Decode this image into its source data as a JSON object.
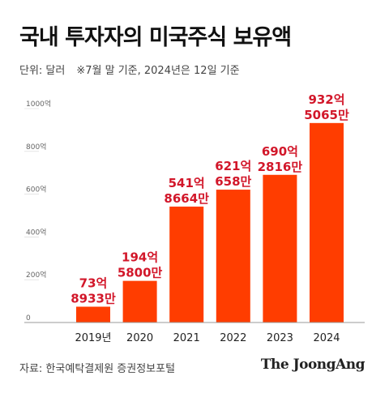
{
  "title": "국내 투자자의 미국주식 보유액",
  "unit_label": "단위: 달러",
  "note": "※7월 말 기준, 2024년은 12일 기준",
  "source": "자료: 한국예탁결제원 증권정보포털",
  "brand": "The JoongAng",
  "colors": {
    "bar": "#ff3d00",
    "label": "#d2172a",
    "axis": "#9a9a9a",
    "tick": "#666666"
  },
  "chart_data": {
    "type": "bar",
    "categories": [
      "2019년",
      "2020",
      "2021",
      "2022",
      "2023",
      "2024"
    ],
    "values": [
      73.8933,
      194.58,
      541.8664,
      621.0658,
      690.2816,
      932.5065
    ],
    "data_labels": [
      [
        "73억",
        "8933만"
      ],
      [
        "194억",
        "5800만"
      ],
      [
        "541억",
        "8664만"
      ],
      [
        "621억",
        "658만"
      ],
      [
        "690억",
        "2816만"
      ],
      [
        "932억",
        "5065만"
      ]
    ],
    "yticks": [
      0,
      200,
      400,
      600,
      800,
      1000
    ],
    "ytick_labels": [
      "0",
      "200억",
      "400억",
      "600억",
      "800억",
      "1000억"
    ],
    "ylim": [
      0,
      1000
    ],
    "grid": false
  }
}
